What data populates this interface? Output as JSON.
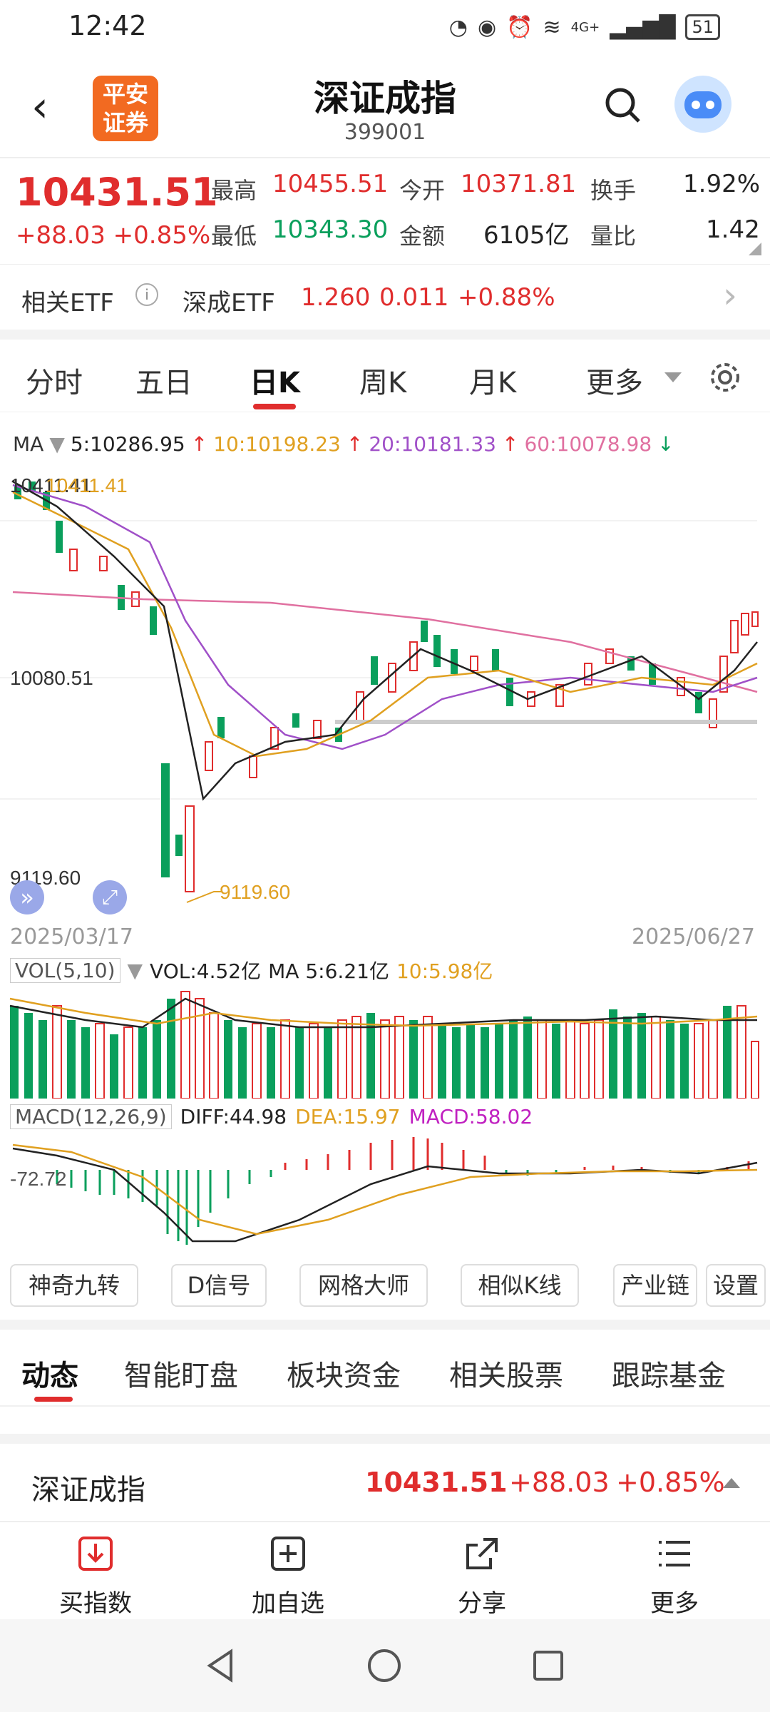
{
  "status": {
    "time": "12:42",
    "battery": "51",
    "network": "4G+"
  },
  "header": {
    "title": "深证成指",
    "code": "399001",
    "logo_line1": "平安",
    "logo_line2": "证券"
  },
  "quote": {
    "price": "10431.51",
    "change": "+88.03",
    "change_pct": "+0.85%",
    "high_label": "最高",
    "high": "10455.51",
    "open_label": "今开",
    "open": "10371.81",
    "turnover_label": "换手",
    "turnover": "1.92%",
    "low_label": "最低",
    "low": "10343.30",
    "amount_label": "金额",
    "amount": "6105亿",
    "ratio_label": "量比",
    "ratio": "1.42"
  },
  "etf": {
    "label": "相关ETF",
    "name": "深成ETF",
    "price": "1.260",
    "change": "0.011",
    "pct": "+0.88%"
  },
  "tabs": [
    "分时",
    "五日",
    "日K",
    "周K",
    "月K",
    "更多"
  ],
  "ma": {
    "label": "MA",
    "ma5": "5:10286.95",
    "ma10": "10:10198.23",
    "ma20": "20:10181.33",
    "ma60": "60:10078.98"
  },
  "chart_labels": {
    "top": "10411.41",
    "top_overlap": "10411.41",
    "mid": "10080.51",
    "low": "9119.60",
    "low_marker": "9119.60",
    "start_date": "2025/03/17",
    "end_date": "2025/06/27"
  },
  "vol": {
    "label": "VOL(5,10)",
    "value": "VOL:4.52亿",
    "ma5": "MA 5:6.21亿",
    "ma10": "10:5.98亿"
  },
  "macd": {
    "label": "MACD(12,26,9)",
    "diff": "DIFF:44.98",
    "dea": "DEA:15.97",
    "macd": "MACD:58.02",
    "axis": "-72.72"
  },
  "chips": [
    "神奇九转",
    "D信号",
    "网格大师",
    "相似K线",
    "产业链",
    "设置"
  ],
  "feed_tabs": [
    "动态",
    "智能盯盘",
    "板块资金",
    "相关股票",
    "跟踪基金"
  ],
  "ticker": {
    "name": "深证成指",
    "price": "10431.51",
    "change": "+88.03",
    "pct": "+0.85%"
  },
  "bottom": [
    "买指数",
    "加自选",
    "分享",
    "更多"
  ],
  "colors": {
    "up": "#e02d2d",
    "down": "#0a9f5c",
    "accent": "#f26a21"
  }
}
